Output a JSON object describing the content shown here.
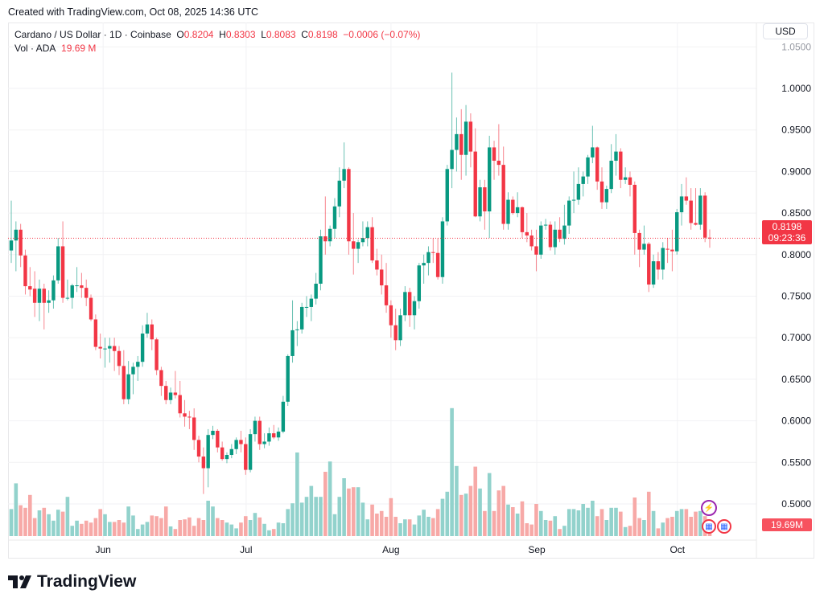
{
  "watermark": "Created with TradingView.com, Oct 08, 2025 14:36 UTC",
  "legend": {
    "symbol": "Cardano / US Dollar · 1D · Coinbase",
    "o_label": "O",
    "o_value": "0.8204",
    "h_label": "H",
    "h_value": "0.8303",
    "l_label": "L",
    "l_value": "0.8083",
    "c_label": "C",
    "c_value": "0.8198",
    "change": "−0.0006 (−0.07%)",
    "vol_label": "Vol · ADA",
    "vol_value": "19.69 M"
  },
  "currency_button": "USD",
  "price_tag": {
    "price": "0.8198",
    "countdown": "09:23:36"
  },
  "volume_tag": "19.69M",
  "logo_text": "TradingView",
  "colors": {
    "up": "#089981",
    "down": "#F23645",
    "up_vol": "#92D2CC",
    "down_vol": "#F7A9A7",
    "last_line": "#F23645"
  },
  "chart_data": {
    "type": "candlestick",
    "title": "Cardano / US Dollar · 1D · Coinbase",
    "ylim": [
      0.45,
      1.06
    ],
    "last_price": 0.8198,
    "y_ticks": [
      "0.5000",
      "0.5500",
      "0.6000",
      "0.6500",
      "0.7000",
      "0.7500",
      "0.8000",
      "0.8500",
      "0.9000",
      "0.9500",
      "1.0000",
      "1.0500"
    ],
    "x_ticks": [
      {
        "label": "Jun",
        "index": 19.6
      },
      {
        "label": "Jul",
        "index": 50.1
      },
      {
        "label": "Aug",
        "index": 81
      },
      {
        "label": "Sep",
        "index": 112.1
      },
      {
        "label": "Oct",
        "index": 142.1
      }
    ],
    "ohlc": [
      [
        0.805,
        0.865,
        0.79,
        0.817
      ],
      [
        0.817,
        0.84,
        0.78,
        0.83
      ],
      [
        0.83,
        0.837,
        0.785,
        0.799
      ],
      [
        0.799,
        0.806,
        0.752,
        0.762
      ],
      [
        0.762,
        0.785,
        0.75,
        0.758
      ],
      [
        0.759,
        0.78,
        0.725,
        0.742
      ],
      [
        0.742,
        0.77,
        0.72,
        0.759
      ],
      [
        0.759,
        0.765,
        0.71,
        0.742
      ],
      [
        0.742,
        0.757,
        0.73,
        0.745
      ],
      [
        0.745,
        0.775,
        0.735,
        0.769
      ],
      [
        0.769,
        0.82,
        0.765,
        0.81
      ],
      [
        0.81,
        0.84,
        0.742,
        0.748
      ],
      [
        0.748,
        0.77,
        0.745,
        0.748
      ],
      [
        0.748,
        0.765,
        0.735,
        0.763
      ],
      [
        0.763,
        0.785,
        0.755,
        0.763
      ],
      [
        0.763,
        0.778,
        0.748,
        0.76
      ],
      [
        0.76,
        0.77,
        0.738,
        0.748
      ],
      [
        0.748,
        0.752,
        0.72,
        0.722
      ],
      [
        0.722,
        0.728,
        0.685,
        0.689
      ],
      [
        0.689,
        0.705,
        0.675,
        0.687
      ],
      [
        0.687,
        0.7,
        0.664,
        0.687
      ],
      [
        0.687,
        0.7,
        0.67,
        0.69
      ],
      [
        0.69,
        0.7,
        0.66,
        0.684
      ],
      [
        0.684,
        0.69,
        0.655,
        0.666
      ],
      [
        0.666,
        0.685,
        0.62,
        0.626
      ],
      [
        0.626,
        0.672,
        0.62,
        0.656
      ],
      [
        0.656,
        0.67,
        0.632,
        0.665
      ],
      [
        0.665,
        0.678,
        0.648,
        0.671
      ],
      [
        0.671,
        0.715,
        0.665,
        0.705
      ],
      [
        0.705,
        0.73,
        0.7,
        0.716
      ],
      [
        0.716,
        0.722,
        0.685,
        0.698
      ],
      [
        0.698,
        0.7,
        0.655,
        0.661
      ],
      [
        0.661,
        0.665,
        0.63,
        0.642
      ],
      [
        0.642,
        0.648,
        0.62,
        0.625
      ],
      [
        0.625,
        0.64,
        0.62,
        0.634
      ],
      [
        0.634,
        0.66,
        0.627,
        0.631
      ],
      [
        0.631,
        0.648,
        0.604,
        0.609
      ],
      [
        0.609,
        0.625,
        0.593,
        0.605
      ],
      [
        0.605,
        0.612,
        0.59,
        0.604
      ],
      [
        0.604,
        0.615,
        0.565,
        0.577
      ],
      [
        0.577,
        0.582,
        0.55,
        0.557
      ],
      [
        0.557,
        0.568,
        0.512,
        0.543
      ],
      [
        0.543,
        0.59,
        0.52,
        0.583
      ],
      [
        0.583,
        0.594,
        0.578,
        0.588
      ],
      [
        0.588,
        0.59,
        0.562,
        0.568
      ],
      [
        0.568,
        0.575,
        0.552,
        0.554
      ],
      [
        0.554,
        0.562,
        0.549,
        0.559
      ],
      [
        0.559,
        0.572,
        0.555,
        0.566
      ],
      [
        0.566,
        0.58,
        0.56,
        0.577
      ],
      [
        0.577,
        0.588,
        0.562,
        0.572
      ],
      [
        0.572,
        0.58,
        0.535,
        0.541
      ],
      [
        0.541,
        0.59,
        0.538,
        0.584
      ],
      [
        0.584,
        0.605,
        0.575,
        0.6
      ],
      [
        0.6,
        0.605,
        0.565,
        0.572
      ],
      [
        0.572,
        0.585,
        0.567,
        0.575
      ],
      [
        0.575,
        0.592,
        0.57,
        0.585
      ],
      [
        0.585,
        0.595,
        0.578,
        0.58
      ],
      [
        0.58,
        0.592,
        0.576,
        0.587
      ],
      [
        0.587,
        0.63,
        0.585,
        0.623
      ],
      [
        0.623,
        0.68,
        0.618,
        0.678
      ],
      [
        0.678,
        0.745,
        0.67,
        0.709
      ],
      [
        0.709,
        0.72,
        0.69,
        0.71
      ],
      [
        0.71,
        0.742,
        0.705,
        0.737
      ],
      [
        0.737,
        0.75,
        0.725,
        0.737
      ],
      [
        0.737,
        0.752,
        0.72,
        0.747
      ],
      [
        0.747,
        0.778,
        0.74,
        0.765
      ],
      [
        0.765,
        0.83,
        0.757,
        0.822
      ],
      [
        0.822,
        0.87,
        0.8,
        0.816
      ],
      [
        0.816,
        0.835,
        0.81,
        0.831
      ],
      [
        0.831,
        0.868,
        0.82,
        0.858
      ],
      [
        0.858,
        0.905,
        0.845,
        0.889
      ],
      [
        0.889,
        0.935,
        0.88,
        0.903
      ],
      [
        0.903,
        0.905,
        0.8,
        0.816
      ],
      [
        0.816,
        0.85,
        0.776,
        0.807
      ],
      [
        0.807,
        0.818,
        0.79,
        0.815
      ],
      [
        0.815,
        0.84,
        0.81,
        0.82
      ],
      [
        0.82,
        0.84,
        0.81,
        0.833
      ],
      [
        0.833,
        0.845,
        0.79,
        0.793
      ],
      [
        0.793,
        0.807,
        0.775,
        0.782
      ],
      [
        0.782,
        0.8,
        0.752,
        0.763
      ],
      [
        0.763,
        0.79,
        0.73,
        0.739
      ],
      [
        0.739,
        0.745,
        0.7,
        0.715
      ],
      [
        0.715,
        0.735,
        0.685,
        0.697
      ],
      [
        0.697,
        0.735,
        0.69,
        0.727
      ],
      [
        0.727,
        0.762,
        0.72,
        0.755
      ],
      [
        0.755,
        0.76,
        0.713,
        0.727
      ],
      [
        0.727,
        0.75,
        0.71,
        0.744
      ],
      [
        0.744,
        0.79,
        0.735,
        0.787
      ],
      [
        0.787,
        0.8,
        0.765,
        0.79
      ],
      [
        0.79,
        0.81,
        0.775,
        0.803
      ],
      [
        0.803,
        0.82,
        0.79,
        0.802
      ],
      [
        0.802,
        0.82,
        0.77,
        0.773
      ],
      [
        0.773,
        0.845,
        0.765,
        0.84
      ],
      [
        0.84,
        0.908,
        0.835,
        0.903
      ],
      [
        0.903,
        1.019,
        0.88,
        0.926
      ],
      [
        0.926,
        0.965,
        0.9,
        0.945
      ],
      [
        0.945,
        0.975,
        0.89,
        0.92
      ],
      [
        0.92,
        0.98,
        0.895,
        0.96
      ],
      [
        0.96,
        0.97,
        0.905,
        0.924
      ],
      [
        0.924,
        0.952,
        0.845,
        0.846
      ],
      [
        0.846,
        0.89,
        0.84,
        0.881
      ],
      [
        0.881,
        0.89,
        0.83,
        0.852
      ],
      [
        0.852,
        0.943,
        0.82,
        0.929
      ],
      [
        0.929,
        0.937,
        0.89,
        0.913
      ],
      [
        0.913,
        0.957,
        0.895,
        0.908
      ],
      [
        0.908,
        0.93,
        0.83,
        0.837
      ],
      [
        0.837,
        0.875,
        0.83,
        0.866
      ],
      [
        0.866,
        0.87,
        0.848,
        0.85
      ],
      [
        0.85,
        0.875,
        0.845,
        0.857
      ],
      [
        0.857,
        0.858,
        0.82,
        0.827
      ],
      [
        0.827,
        0.85,
        0.815,
        0.823
      ],
      [
        0.823,
        0.83,
        0.805,
        0.81
      ],
      [
        0.81,
        0.83,
        0.78,
        0.8
      ],
      [
        0.8,
        0.84,
        0.795,
        0.835
      ],
      [
        0.835,
        0.843,
        0.83,
        0.836
      ],
      [
        0.836,
        0.84,
        0.805,
        0.809
      ],
      [
        0.809,
        0.84,
        0.8,
        0.83
      ],
      [
        0.83,
        0.845,
        0.815,
        0.819
      ],
      [
        0.819,
        0.86,
        0.812,
        0.835
      ],
      [
        0.835,
        0.87,
        0.825,
        0.865
      ],
      [
        0.865,
        0.9,
        0.85,
        0.866
      ],
      [
        0.866,
        0.905,
        0.86,
        0.885
      ],
      [
        0.885,
        0.9,
        0.87,
        0.894
      ],
      [
        0.894,
        0.92,
        0.885,
        0.917
      ],
      [
        0.917,
        0.955,
        0.91,
        0.929
      ],
      [
        0.929,
        0.93,
        0.878,
        0.888
      ],
      [
        0.888,
        0.905,
        0.855,
        0.863
      ],
      [
        0.863,
        0.883,
        0.855,
        0.879
      ],
      [
        0.879,
        0.933,
        0.874,
        0.913
      ],
      [
        0.913,
        0.945,
        0.895,
        0.924
      ],
      [
        0.924,
        0.928,
        0.88,
        0.89
      ],
      [
        0.89,
        0.905,
        0.885,
        0.893
      ],
      [
        0.893,
        0.9,
        0.87,
        0.884
      ],
      [
        0.884,
        0.888,
        0.8,
        0.826
      ],
      [
        0.826,
        0.83,
        0.785,
        0.806
      ],
      [
        0.806,
        0.835,
        0.8,
        0.813
      ],
      [
        0.813,
        0.815,
        0.755,
        0.764
      ],
      [
        0.764,
        0.8,
        0.76,
        0.792
      ],
      [
        0.792,
        0.803,
        0.77,
        0.782
      ],
      [
        0.782,
        0.815,
        0.77,
        0.808
      ],
      [
        0.807,
        0.82,
        0.79,
        0.806
      ],
      [
        0.806,
        0.83,
        0.78,
        0.804
      ],
      [
        0.804,
        0.855,
        0.8,
        0.851
      ],
      [
        0.851,
        0.885,
        0.835,
        0.87
      ],
      [
        0.87,
        0.893,
        0.86,
        0.865
      ],
      [
        0.865,
        0.88,
        0.83,
        0.838
      ],
      [
        0.838,
        0.88,
        0.835,
        0.836
      ],
      [
        0.836,
        0.88,
        0.83,
        0.871
      ],
      [
        0.871,
        0.875,
        0.815,
        0.8204
      ],
      [
        0.8204,
        0.8303,
        0.8083,
        0.8198
      ]
    ],
    "volume_m": [
      42,
      82,
      48,
      44,
      64,
      28,
      40,
      44,
      34,
      24,
      41,
      38,
      61,
      16,
      24,
      19,
      24,
      21,
      28,
      42,
      34,
      22,
      22,
      25,
      21,
      46,
      32,
      11,
      18,
      22,
      32,
      31,
      28,
      46,
      15,
      11,
      25,
      26,
      29,
      16,
      28,
      25,
      55,
      46,
      28,
      25,
      21,
      18,
      12,
      21,
      31,
      25,
      36,
      29,
      19,
      9,
      11,
      21,
      20,
      42,
      51,
      130,
      52,
      61,
      78,
      61,
      61,
      100,
      116,
      34,
      61,
      90,
      74,
      76,
      76,
      52,
      26,
      49,
      35,
      39,
      30,
      59,
      30,
      20,
      26,
      26,
      18,
      32,
      41,
      30,
      28,
      42,
      58,
      69,
      199,
      109,
      64,
      66,
      78,
      108,
      74,
      39,
      98,
      39,
      71,
      78,
      49,
      45,
      35,
      54,
      20,
      18,
      50,
      39,
      25,
      24,
      31,
      11,
      16,
      42,
      42,
      40,
      50,
      44,
      55,
      31,
      42,
      25,
      44,
      44,
      38,
      14,
      16,
      60,
      28,
      25,
      69,
      39,
      12,
      21,
      28,
      30,
      39,
      42,
      42,
      30,
      38,
      39,
      31,
      19.69
    ]
  }
}
